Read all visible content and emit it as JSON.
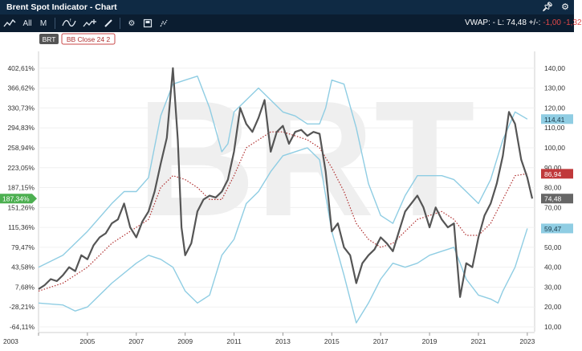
{
  "window": {
    "title": "Brent Spot Indicator - Chart"
  },
  "toolbar": {
    "all_label": "All",
    "m_label": "M",
    "vwap_prefix": "VWAP: -",
    "last_label": "L: 74,48",
    "change_label": "+/-:",
    "change_values": "-1,00 -1,32",
    "icons": [
      "line-chart-icon",
      "chart-type-icon",
      "add-indicator-icon",
      "draw-pencil-icon",
      "settings-gear-icon",
      "save-icon",
      "compare-icon",
      "close-icon",
      "pin-icon"
    ]
  },
  "legend": {
    "symbol_badge": "BRT",
    "bb_badge": "BB Close 24 2"
  },
  "watermark": "BRT",
  "colors": {
    "price": "#555555",
    "bands": "#8fcde3",
    "mid": "#b03030",
    "marker_green": "#4caf50",
    "marker_red": "#c0393b",
    "marker_gray": "#666666",
    "marker_blue": "#8fcde3"
  },
  "chart_data": {
    "type": "line",
    "title": "Brent Spot Indicator",
    "x_ticks": [
      "2003",
      "2005",
      "2007",
      "2009",
      "2011",
      "2013",
      "2015",
      "2017",
      "2019",
      "2021",
      "2023"
    ],
    "x_range": [
      2003.0,
      2023.3
    ],
    "left_axis": {
      "ticks": [
        "402,61%",
        "366,62%",
        "330,73%",
        "294,83%",
        "258,94%",
        "223,05%",
        "187,15%",
        "151,26%",
        "115,36%",
        "79,47%",
        "43,58%",
        "7,68%",
        "-28,21%",
        "-64,11%"
      ]
    },
    "right_axis": {
      "ticks": [
        "140,00",
        "130,00",
        "120,00",
        "110,00",
        "100,00",
        "90,00",
        "80,00",
        "70,00",
        "60,00",
        "50,00",
        "40,00",
        "30,00",
        "20,00",
        "10,00"
      ],
      "ylim": [
        10,
        146
      ]
    },
    "markers": {
      "left_pct": "187,34%",
      "upper_band": "114,41",
      "mid_band": "86,94",
      "last_price": "74,48",
      "lower_band": "59,47"
    },
    "series": [
      {
        "name": "BRT",
        "color": "#555555",
        "points": [
          [
            2003.0,
            29
          ],
          [
            2003.25,
            31
          ],
          [
            2003.5,
            34
          ],
          [
            2003.75,
            33
          ],
          [
            2004.0,
            36
          ],
          [
            2004.25,
            40
          ],
          [
            2004.5,
            38
          ],
          [
            2004.75,
            46
          ],
          [
            2005.0,
            44
          ],
          [
            2005.25,
            51
          ],
          [
            2005.5,
            55
          ],
          [
            2005.75,
            57
          ],
          [
            2006.0,
            62
          ],
          [
            2006.25,
            64
          ],
          [
            2006.5,
            72
          ],
          [
            2006.75,
            60
          ],
          [
            2007.0,
            55
          ],
          [
            2007.25,
            63
          ],
          [
            2007.5,
            68
          ],
          [
            2007.75,
            78
          ],
          [
            2008.0,
            92
          ],
          [
            2008.25,
            105
          ],
          [
            2008.5,
            140
          ],
          [
            2008.7,
            104
          ],
          [
            2008.85,
            60
          ],
          [
            2009.0,
            46
          ],
          [
            2009.25,
            52
          ],
          [
            2009.5,
            68
          ],
          [
            2009.75,
            74
          ],
          [
            2010.0,
            76
          ],
          [
            2010.25,
            75
          ],
          [
            2010.5,
            78
          ],
          [
            2010.75,
            84
          ],
          [
            2011.0,
            98
          ],
          [
            2011.25,
            120
          ],
          [
            2011.5,
            112
          ],
          [
            2011.75,
            108
          ],
          [
            2012.0,
            115
          ],
          [
            2012.25,
            124
          ],
          [
            2012.5,
            98
          ],
          [
            2012.75,
            108
          ],
          [
            2013.0,
            111
          ],
          [
            2013.25,
            102
          ],
          [
            2013.5,
            108
          ],
          [
            2013.75,
            109
          ],
          [
            2014.0,
            106
          ],
          [
            2014.25,
            108
          ],
          [
            2014.5,
            107
          ],
          [
            2014.75,
            88
          ],
          [
            2015.0,
            58
          ],
          [
            2015.25,
            62
          ],
          [
            2015.5,
            50
          ],
          [
            2015.75,
            46
          ],
          [
            2016.0,
            32
          ],
          [
            2016.25,
            42
          ],
          [
            2016.5,
            46
          ],
          [
            2016.75,
            49
          ],
          [
            2017.0,
            55
          ],
          [
            2017.25,
            52
          ],
          [
            2017.5,
            48
          ],
          [
            2017.75,
            58
          ],
          [
            2018.0,
            68
          ],
          [
            2018.25,
            72
          ],
          [
            2018.5,
            76
          ],
          [
            2018.75,
            70
          ],
          [
            2019.0,
            60
          ],
          [
            2019.25,
            70
          ],
          [
            2019.5,
            64
          ],
          [
            2019.75,
            60
          ],
          [
            2020.0,
            62
          ],
          [
            2020.25,
            25
          ],
          [
            2020.5,
            42
          ],
          [
            2020.75,
            40
          ],
          [
            2021.0,
            55
          ],
          [
            2021.25,
            66
          ],
          [
            2021.5,
            72
          ],
          [
            2021.75,
            82
          ],
          [
            2022.0,
            96
          ],
          [
            2022.25,
            118
          ],
          [
            2022.5,
            112
          ],
          [
            2022.75,
            94
          ],
          [
            2023.0,
            85
          ],
          [
            2023.2,
            74.48
          ]
        ]
      },
      {
        "name": "BB upper",
        "color": "#8fcde3",
        "points": [
          [
            2003.0,
            40
          ],
          [
            2004.0,
            46
          ],
          [
            2005.0,
            58
          ],
          [
            2006.0,
            72
          ],
          [
            2006.5,
            78
          ],
          [
            2007.0,
            78
          ],
          [
            2007.5,
            85
          ],
          [
            2008.0,
            116
          ],
          [
            2008.5,
            132
          ],
          [
            2009.0,
            134
          ],
          [
            2009.5,
            136
          ],
          [
            2010.0,
            120
          ],
          [
            2010.5,
            98
          ],
          [
            2010.75,
            102
          ],
          [
            2011.0,
            118
          ],
          [
            2011.5,
            124
          ],
          [
            2012.0,
            130
          ],
          [
            2012.5,
            124
          ],
          [
            2013.0,
            118
          ],
          [
            2013.5,
            116
          ],
          [
            2014.0,
            112
          ],
          [
            2014.5,
            112
          ],
          [
            2014.75,
            120
          ],
          [
            2015.0,
            134
          ],
          [
            2015.5,
            132
          ],
          [
            2016.0,
            110
          ],
          [
            2016.5,
            82
          ],
          [
            2017.0,
            66
          ],
          [
            2017.5,
            62
          ],
          [
            2018.0,
            76
          ],
          [
            2018.5,
            86
          ],
          [
            2019.0,
            86
          ],
          [
            2019.5,
            86
          ],
          [
            2020.0,
            84
          ],
          [
            2020.5,
            78
          ],
          [
            2021.0,
            72
          ],
          [
            2021.5,
            84
          ],
          [
            2022.0,
            104
          ],
          [
            2022.5,
            118
          ],
          [
            2023.0,
            114.41
          ]
        ]
      },
      {
        "name": "BB middle",
        "color": "#b03030",
        "points": [
          [
            2003.0,
            28
          ],
          [
            2004.0,
            32
          ],
          [
            2005.0,
            40
          ],
          [
            2006.0,
            52
          ],
          [
            2007.0,
            60
          ],
          [
            2007.5,
            64
          ],
          [
            2008.0,
            80
          ],
          [
            2008.5,
            86
          ],
          [
            2009.0,
            84
          ],
          [
            2009.5,
            80
          ],
          [
            2010.0,
            74
          ],
          [
            2010.5,
            74
          ],
          [
            2011.0,
            86
          ],
          [
            2011.5,
            100
          ],
          [
            2012.0,
            104
          ],
          [
            2012.5,
            108
          ],
          [
            2013.0,
            108
          ],
          [
            2013.5,
            106
          ],
          [
            2014.0,
            104
          ],
          [
            2014.5,
            100
          ],
          [
            2015.0,
            90
          ],
          [
            2015.5,
            78
          ],
          [
            2016.0,
            62
          ],
          [
            2016.5,
            54
          ],
          [
            2017.0,
            50
          ],
          [
            2017.5,
            52
          ],
          [
            2018.0,
            58
          ],
          [
            2018.5,
            64
          ],
          [
            2019.0,
            66
          ],
          [
            2019.5,
            68
          ],
          [
            2020.0,
            64
          ],
          [
            2020.5,
            56
          ],
          [
            2021.0,
            56
          ],
          [
            2021.5,
            62
          ],
          [
            2022.0,
            74
          ],
          [
            2022.5,
            86
          ],
          [
            2023.0,
            86.94
          ]
        ]
      },
      {
        "name": "BB lower",
        "color": "#8fcde3",
        "points": [
          [
            2003.0,
            22
          ],
          [
            2004.0,
            21
          ],
          [
            2004.5,
            18
          ],
          [
            2005.0,
            20
          ],
          [
            2006.0,
            32
          ],
          [
            2007.0,
            42
          ],
          [
            2007.5,
            46
          ],
          [
            2008.0,
            44
          ],
          [
            2008.5,
            40
          ],
          [
            2009.0,
            28
          ],
          [
            2009.5,
            22
          ],
          [
            2010.0,
            26
          ],
          [
            2010.5,
            46
          ],
          [
            2011.0,
            54
          ],
          [
            2011.5,
            72
          ],
          [
            2012.0,
            78
          ],
          [
            2012.5,
            88
          ],
          [
            2013.0,
            96
          ],
          [
            2013.5,
            98
          ],
          [
            2014.0,
            100
          ],
          [
            2014.5,
            94
          ],
          [
            2015.0,
            58
          ],
          [
            2015.5,
            36
          ],
          [
            2016.0,
            12
          ],
          [
            2016.5,
            22
          ],
          [
            2017.0,
            34
          ],
          [
            2017.5,
            42
          ],
          [
            2018.0,
            40
          ],
          [
            2018.5,
            42
          ],
          [
            2019.0,
            46
          ],
          [
            2019.5,
            48
          ],
          [
            2020.0,
            50
          ],
          [
            2020.5,
            34
          ],
          [
            2021.0,
            26
          ],
          [
            2021.5,
            24
          ],
          [
            2021.8,
            22
          ],
          [
            2022.0,
            28
          ],
          [
            2022.5,
            40
          ],
          [
            2023.0,
            59.47
          ]
        ]
      }
    ]
  }
}
